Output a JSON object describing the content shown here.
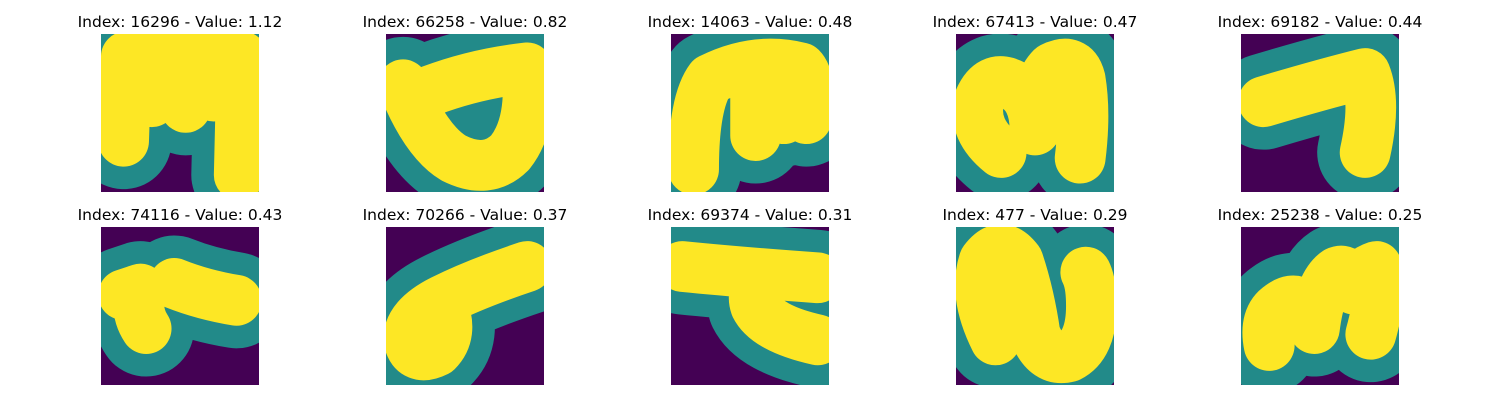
{
  "panels": [
    {
      "title": "Index: 16296 - Value: 1.12",
      "glyph": "glyph-m-box"
    },
    {
      "title": "Index: 66258 - Value: 0.82",
      "glyph": "glyph-cup"
    },
    {
      "title": "Index: 14063 - Value: 0.48",
      "glyph": "glyph-m-arch"
    },
    {
      "title": "Index: 67413 - Value: 0.47",
      "glyph": "glyph-m-round"
    },
    {
      "title": "Index: 69182 - Value: 0.44",
      "glyph": "glyph-seven"
    },
    {
      "title": "Index: 74116 - Value: 0.43",
      "glyph": "glyph-blobs"
    },
    {
      "title": "Index: 70266 - Value: 0.37",
      "glyph": "glyph-loop"
    },
    {
      "title": "Index: 69374 - Value: 0.31",
      "glyph": "glyph-hook"
    },
    {
      "title": "Index: 477 - Value: 0.29",
      "glyph": "glyph-n-wave"
    },
    {
      "title": "Index: 25238 - Value: 0.25",
      "glyph": "glyph-m-script"
    }
  ],
  "colors": {
    "background": "#440154",
    "stroke_low": "#21918c",
    "stroke_mid": "#5ec962",
    "stroke_high": "#fde725"
  }
}
